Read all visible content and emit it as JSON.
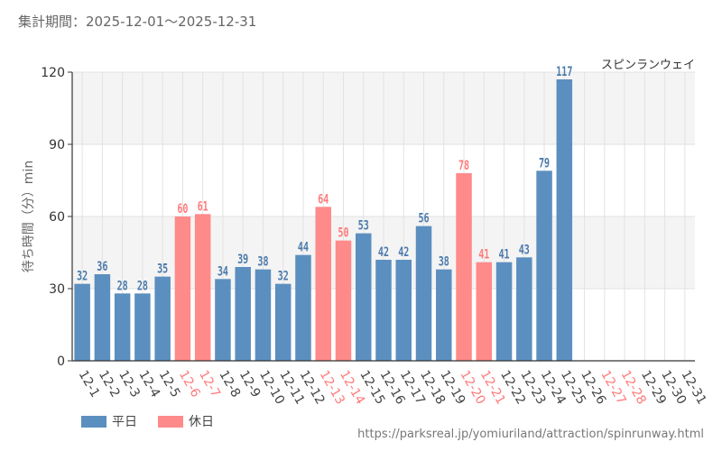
{
  "header": {
    "period": "集計期間：2025-12-01～2025-12-31"
  },
  "legend": {
    "weekday_label": "平日",
    "holiday_label": "休日"
  },
  "footer": {
    "source": "https://parksreal.jp/yomiuriland/attraction/spinrunway.html"
  },
  "colors": {
    "weekday": "#5b8fbf",
    "holiday": "#ff8a8a",
    "weekday_text": "#4a7aab",
    "holiday_text": "#ff7a7a",
    "band": "#f4f4f4",
    "grid": "#e2e2e2",
    "axis": "#333333"
  },
  "chart_data": {
    "type": "bar",
    "title": "スピンランウェイ",
    "ylabel": "待ち時間（分）min",
    "xlabel": "",
    "ylim": [
      0,
      120
    ],
    "yticks": [
      0,
      30,
      60,
      90,
      120
    ],
    "categories": [
      "12-1",
      "12-2",
      "12-3",
      "12-4",
      "12-5",
      "12-6",
      "12-7",
      "12-8",
      "12-9",
      "12-10",
      "12-11",
      "12-12",
      "12-13",
      "12-14",
      "12-15",
      "12-16",
      "12-17",
      "12-18",
      "12-19",
      "12-20",
      "12-21",
      "12-22",
      "12-23",
      "12-24",
      "12-25",
      "12-26",
      "12-27",
      "12-28",
      "12-29",
      "12-30",
      "12-31"
    ],
    "values": [
      32,
      36,
      28,
      28,
      35,
      60,
      61,
      34,
      39,
      38,
      32,
      44,
      64,
      50,
      53,
      42,
      42,
      56,
      38,
      78,
      41,
      41,
      43,
      79,
      117,
      null,
      null,
      null,
      null,
      null,
      null
    ],
    "day_type": [
      "weekday",
      "weekday",
      "weekday",
      "weekday",
      "weekday",
      "holiday",
      "holiday",
      "weekday",
      "weekday",
      "weekday",
      "weekday",
      "weekday",
      "holiday",
      "holiday",
      "weekday",
      "weekday",
      "weekday",
      "weekday",
      "weekday",
      "holiday",
      "holiday",
      "weekday",
      "weekday",
      "weekday",
      "weekday",
      "weekday",
      "holiday",
      "holiday",
      "weekday",
      "weekday",
      "weekday"
    ],
    "series_names": {
      "weekday": "平日",
      "holiday": "休日"
    }
  }
}
